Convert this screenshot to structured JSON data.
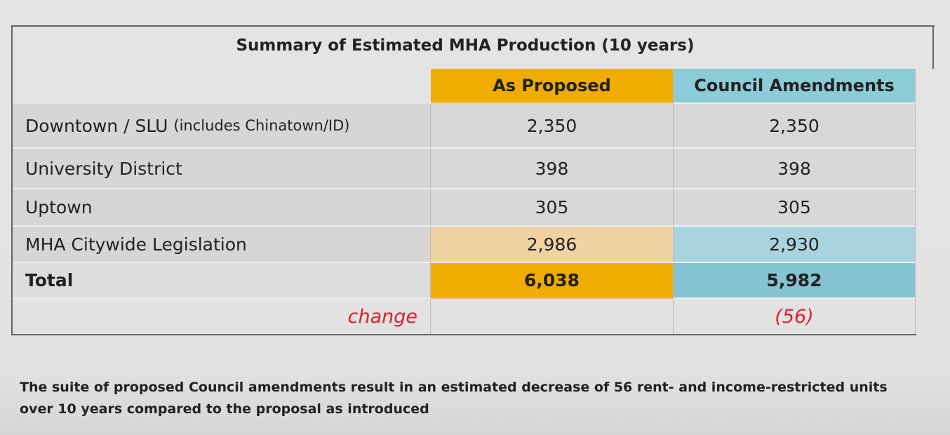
{
  "table": {
    "title": "Summary of Estimated MHA Production (10 years)",
    "columns": [
      "As Proposed",
      "Council Amendments"
    ],
    "rows": [
      {
        "label": "Downtown / SLU",
        "note": "(includes Chinatown/ID)",
        "values": [
          "2,350",
          "2,350"
        ]
      },
      {
        "label": "University District",
        "values": [
          "398",
          "398"
        ]
      },
      {
        "label": "Uptown",
        "values": [
          "305",
          "305"
        ]
      },
      {
        "label": "MHA Citywide Legislation",
        "values": [
          "2,986",
          "2,930"
        ]
      },
      {
        "label": "Total",
        "values": [
          "6,038",
          "5,982"
        ]
      },
      {
        "label": "change",
        "values": [
          "",
          "(56)"
        ]
      }
    ],
    "colors": {
      "proposed_header": "#f0ac00",
      "proposed_light": "#f1d3a3",
      "amend_header": "#8ccbd8",
      "amend_light": "#a9d4df",
      "amend_total": "#84c3d2",
      "change_red": "#d9232e"
    }
  },
  "footnote": "The suite of proposed Council amendments result in an estimated decrease of 56 rent- and income-restricted units over 10 years compared to the proposal as introduced"
}
